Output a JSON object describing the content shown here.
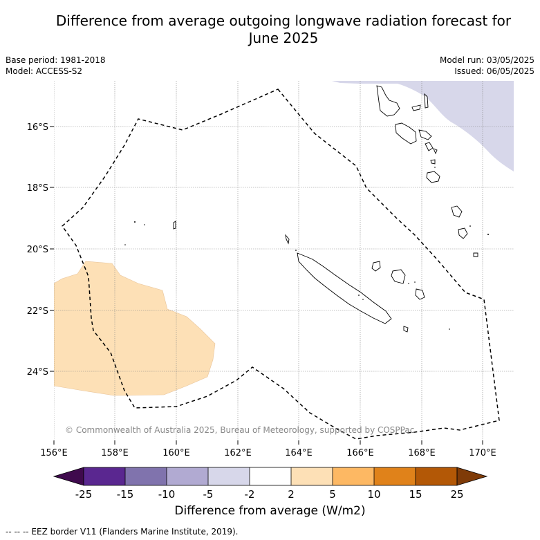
{
  "header": {
    "title_line1": "Difference from average outgoing longwave radiation forecast for",
    "title_line2": "June 2025",
    "base_period": "Base period: 1981-2018",
    "model": "Model: ACCESS-S2",
    "model_run": "Model run: 03/05/2025",
    "issued": "Issued: 06/05/2025"
  },
  "map": {
    "lat_labels": [
      "16°S",
      "18°S",
      "20°S",
      "22°S",
      "24°S"
    ],
    "lon_labels": [
      "156°E",
      "158°E",
      "160°E",
      "162°E",
      "164°E",
      "166°E",
      "168°E",
      "170°E"
    ],
    "copyright": "© Commonwealth of Australia 2025, Bureau of Meteorology, supported by COSPPac",
    "anomaly_colors": {
      "negative_light": "#d7d7ea",
      "positive_light": "#fde0b6"
    }
  },
  "colorbar": {
    "ticks": [
      "-25",
      "-15",
      "-10",
      "-5",
      "-2",
      "2",
      "5",
      "10",
      "15",
      "25"
    ],
    "colors": [
      "#3f0a4d",
      "#5a2790",
      "#8073ad",
      "#b1aad2",
      "#d7d7ea",
      "#ffffff",
      "#fde0b6",
      "#fdb863",
      "#e0821a",
      "#b35806",
      "#7f3b08"
    ],
    "label": "Difference from average (W/m2)"
  },
  "footer": {
    "legend": "--  --  -- EEZ border V11 (Flanders Marine Institute, 2019)."
  }
}
